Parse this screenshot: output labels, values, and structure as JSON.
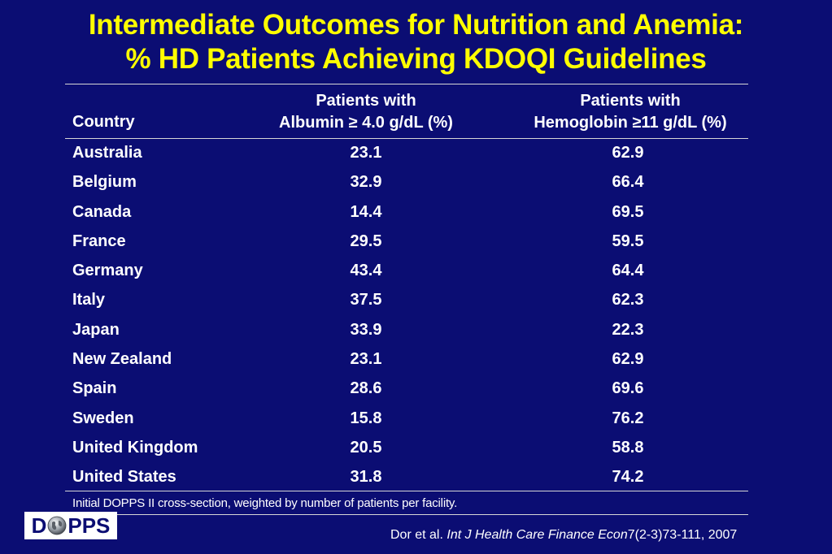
{
  "title": {
    "line1": "Intermediate Outcomes for Nutrition and Anemia:",
    "line2": "% HD Patients Achieving KDOQI Guidelines"
  },
  "table": {
    "headers": {
      "country": "Country",
      "albumin_line1": "Patients with",
      "albumin_line2": "Albumin ≥ 4.0 g/dL (%)",
      "hemoglobin_line1": "Patients with",
      "hemoglobin_line2": "Hemoglobin ≥11 g/dL (%)"
    },
    "rows": [
      {
        "country": "Australia",
        "albumin": "23.1",
        "hemoglobin": "62.9"
      },
      {
        "country": "Belgium",
        "albumin": "32.9",
        "hemoglobin": "66.4"
      },
      {
        "country": "Canada",
        "albumin": "14.4",
        "hemoglobin": "69.5"
      },
      {
        "country": "France",
        "albumin": "29.5",
        "hemoglobin": "59.5"
      },
      {
        "country": "Germany",
        "albumin": "43.4",
        "hemoglobin": "64.4"
      },
      {
        "country": "Italy",
        "albumin": "37.5",
        "hemoglobin": "62.3"
      },
      {
        "country": "Japan",
        "albumin": "33.9",
        "hemoglobin": "22.3"
      },
      {
        "country": "New Zealand",
        "albumin": "23.1",
        "hemoglobin": "62.9"
      },
      {
        "country": "Spain",
        "albumin": "28.6",
        "hemoglobin": "69.6"
      },
      {
        "country": "Sweden",
        "albumin": "15.8",
        "hemoglobin": "76.2"
      },
      {
        "country": "United Kingdom",
        "albumin": "20.5",
        "hemoglobin": "58.8"
      },
      {
        "country": "United States",
        "albumin": "31.8",
        "hemoglobin": "74.2"
      }
    ],
    "footnote": "Initial DOPPS II cross-section, weighted by number of patients per facility."
  },
  "logo": {
    "text_left": "D",
    "text_right": "PPS",
    "icon": "globe-icon"
  },
  "citation": {
    "authors": "Dor et al.",
    "journal": "Int J Health Care Finance Econ",
    "ref": "7(2-3)73-111, 2007"
  },
  "colors": {
    "background": "#0b0d73",
    "title": "#ffff00",
    "text": "#ffffff",
    "rule": "#d7d7d7"
  }
}
